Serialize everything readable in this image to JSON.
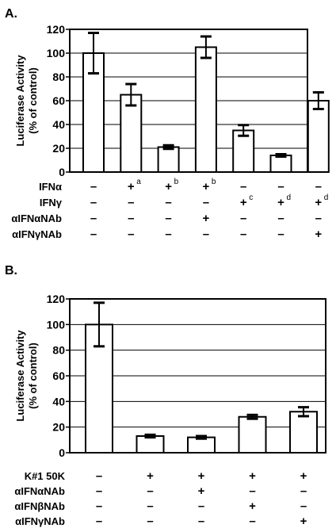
{
  "chart_data": [
    {
      "panel_label": "A.",
      "type": "bar",
      "ylabel_line1": "Luciferase Activity",
      "ylabel_line2": "(% of control)",
      "ylim": [
        0,
        120
      ],
      "yticks": [
        "0",
        "20",
        "40",
        "60",
        "80",
        "100",
        "120"
      ],
      "grid": true,
      "values": [
        100,
        65,
        21,
        105,
        35,
        14,
        60
      ],
      "errors": [
        17,
        9,
        1.5,
        9,
        4.5,
        1,
        7
      ],
      "conditions": [
        {
          "label": "IFNα",
          "cells": [
            "–",
            "+",
            "+",
            "+",
            "–",
            "–",
            "–"
          ],
          "sups": [
            "",
            "a",
            "b",
            "b",
            "",
            "",
            ""
          ]
        },
        {
          "label": "IFNγ",
          "cells": [
            "–",
            "–",
            "–",
            "–",
            "+",
            "+",
            "+"
          ],
          "sups": [
            "",
            "",
            "",
            "",
            "c",
            "d",
            "d"
          ]
        },
        {
          "label": "αIFNαNAb",
          "cells": [
            "–",
            "–",
            "–",
            "+",
            "–",
            "–",
            "–"
          ],
          "sups": [
            "",
            "",
            "",
            "",
            "",
            "",
            ""
          ]
        },
        {
          "label": "αIFNγNAb",
          "cells": [
            "–",
            "–",
            "–",
            "–",
            "–",
            "–",
            "+"
          ],
          "sups": [
            "",
            "",
            "",
            "",
            "",
            "",
            ""
          ]
        }
      ]
    },
    {
      "panel_label": "B.",
      "type": "bar",
      "ylabel_line1": "Luciferase Activity",
      "ylabel_line2": "(% of control)",
      "ylim": [
        0,
        120
      ],
      "yticks": [
        "0",
        "20",
        "40",
        "60",
        "80",
        "100",
        "120"
      ],
      "grid": true,
      "values": [
        100,
        13,
        12,
        28,
        32
      ],
      "errors": [
        17,
        1,
        1,
        1.5,
        3.5
      ],
      "conditions": [
        {
          "label": "K#1 50K",
          "cells": [
            "–",
            "+",
            "+",
            "+",
            "+"
          ]
        },
        {
          "label": "αIFNαNAb",
          "cells": [
            "–",
            "–",
            "+",
            "–",
            "–"
          ]
        },
        {
          "label": "αIFNβNAb",
          "cells": [
            "–",
            "–",
            "–",
            "+",
            "–"
          ]
        },
        {
          "label": "αIFNγNAb",
          "cells": [
            "–",
            "–",
            "–",
            "–",
            "+"
          ]
        }
      ]
    }
  ]
}
